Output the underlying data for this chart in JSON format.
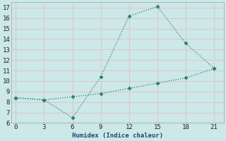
{
  "xlabel": "Humidex (Indice chaleur)",
  "background_color": "#cce8e8",
  "grid_color": "#ddc8c8",
  "line_color": "#2e7d6e",
  "series1_x": [
    0,
    3,
    6,
    9,
    12,
    15,
    18,
    21
  ],
  "series1_y": [
    8.4,
    8.2,
    6.5,
    10.4,
    16.2,
    17.1,
    13.6,
    11.2
  ],
  "series2_x": [
    0,
    3,
    6,
    9,
    12,
    15,
    18,
    21
  ],
  "series2_y": [
    8.4,
    8.2,
    8.5,
    8.8,
    9.3,
    9.8,
    10.3,
    11.2
  ],
  "xlim": [
    -0.5,
    22
  ],
  "ylim": [
    6,
    17.5
  ],
  "xticks": [
    0,
    3,
    6,
    9,
    12,
    15,
    18,
    21
  ],
  "yticks": [
    6,
    7,
    8,
    9,
    10,
    11,
    12,
    13,
    14,
    15,
    16,
    17
  ],
  "figsize": [
    3.2,
    2.0
  ],
  "dpi": 100
}
